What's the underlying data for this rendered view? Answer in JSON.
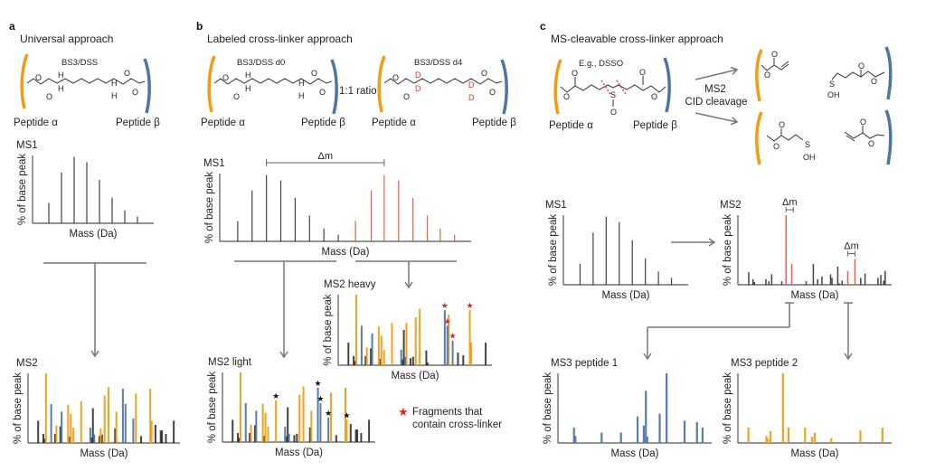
{
  "colors": {
    "orange": "#f39c12",
    "blue": "#4f75a8",
    "black": "#222222",
    "red": "#e8554a",
    "gray": "#777777",
    "star_red": "#e8231b"
  },
  "panels": {
    "a": {
      "letter": "a",
      "title": "Universal approach",
      "linker": "BS3/DSS",
      "peptide_alpha": "Peptide α",
      "peptide_beta": "Peptide β"
    },
    "b": {
      "letter": "b",
      "title": "Labeled cross-linker approach",
      "linker_d0": "BS3/DSS d0",
      "linker_d4": "BS3/DSS d4",
      "ratio": "1:1 ratio",
      "peptide_alpha": "Peptide α",
      "peptide_beta": "Peptide β",
      "legend": [
        "Fragments that",
        "contain cross-linker"
      ]
    },
    "c": {
      "letter": "c",
      "title": "MS-cleavable cross-linker approach",
      "linker": "E.g., DSSO",
      "peptide_alpha": "Peptide α",
      "peptide_beta": "Peptide β",
      "cleavage": [
        "MS2",
        "CID cleavage"
      ]
    }
  },
  "atoms": {
    "O": "O",
    "H": "H",
    "D": "D",
    "S": "S",
    "OH": "OH"
  },
  "chart_data": [
    {
      "id": "a-ms1",
      "type": "bar",
      "title": "MS1",
      "xlabel": "Mass (Da)",
      "ylabel": "% of base peak",
      "ylim": [
        0,
        100
      ],
      "series": [
        {
          "name": "light",
          "color": "black",
          "x": [
            1,
            2,
            3,
            4,
            5,
            6,
            7,
            8
          ],
          "values": [
            30,
            75,
            98,
            90,
            64,
            38,
            19,
            10
          ]
        }
      ]
    },
    {
      "id": "a-ms2",
      "type": "bar",
      "title": "MS2",
      "xlabel": "Mass (Da)",
      "ylabel": "% of base peak",
      "ylim": [
        0,
        100
      ],
      "series": [
        {
          "name": "other",
          "color": "black",
          "x": [
            5,
            9,
            10,
            18,
            22,
            29,
            46,
            47,
            52,
            54,
            64,
            65,
            84,
            95,
            99,
            100,
            103,
            109
          ],
          "values": [
            32,
            13,
            6,
            13,
            24,
            9,
            8,
            50,
            10,
            12,
            21,
            4,
            10,
            26,
            18,
            18,
            13,
            32
          ]
        },
        {
          "name": "peptide-alpha",
          "color": "orange",
          "x": [
            11,
            19,
            28,
            30,
            32,
            38,
            53,
            56,
            59,
            65,
            80,
            91,
            92
          ],
          "values": [
            100,
            25,
            55,
            42,
            22,
            60,
            21,
            68,
            80,
            45,
            71,
            78,
            32
          ]
        },
        {
          "name": "peptide-beta",
          "color": "blue",
          "x": [
            15,
            23,
            45,
            48,
            70,
            72,
            78
          ],
          "values": [
            56,
            45,
            22,
            12,
            78,
            56,
            35
          ]
        }
      ]
    },
    {
      "id": "b-ms1",
      "type": "bar",
      "title": "MS1",
      "xlabel": "Mass (Da)",
      "ylabel": "% of base peak",
      "ylim": [
        0,
        100
      ],
      "annotation": "Δm",
      "series": [
        {
          "name": "d0",
          "color": "black",
          "x": [
            1,
            2,
            3,
            4,
            5,
            6,
            7,
            8
          ],
          "values": [
            30,
            75,
            98,
            90,
            64,
            38,
            19,
            10
          ]
        },
        {
          "name": "d4",
          "color": "red",
          "x": [
            9.2,
            10.3,
            11.2,
            12.2,
            13.2,
            14.2,
            15.1,
            16.1
          ],
          "values": [
            30,
            75,
            98,
            90,
            64,
            38,
            19,
            10
          ]
        }
      ]
    },
    {
      "id": "b-ms2-light",
      "type": "bar",
      "title": "MS2  light",
      "xlabel": "Mass (Da)",
      "ylabel": "% of base peak",
      "ylim": [
        0,
        100
      ],
      "starred_x": [
        38,
        70,
        72,
        78,
        92
      ],
      "series": [
        {
          "name": "other",
          "color": "black",
          "x": [
            5,
            9,
            10,
            18,
            22,
            29,
            46,
            47,
            52,
            54,
            64,
            65,
            84,
            95,
            99,
            100,
            103,
            109
          ],
          "values": [
            32,
            13,
            6,
            13,
            24,
            9,
            8,
            50,
            10,
            12,
            21,
            4,
            10,
            26,
            18,
            18,
            13,
            32
          ]
        },
        {
          "name": "peptide-alpha",
          "color": "orange",
          "x": [
            11,
            19,
            28,
            30,
            32,
            38,
            56,
            59,
            65,
            80,
            91,
            92
          ],
          "values": [
            100,
            25,
            55,
            42,
            22,
            60,
            68,
            80,
            45,
            71,
            78,
            32
          ]
        },
        {
          "name": "peptide-beta",
          "color": "blue",
          "x": [
            15,
            23,
            45,
            48,
            70,
            72,
            78
          ],
          "values": [
            56,
            45,
            22,
            12,
            78,
            56,
            35
          ]
        }
      ]
    },
    {
      "id": "b-ms2-heavy",
      "type": "bar",
      "title": "MS2 heavy",
      "xlabel": "Mass (Da)",
      "ylabel": "% of base peak",
      "ylim": [
        0,
        100
      ],
      "starred_x": [
        78,
        80,
        84,
        97
      ],
      "series": [
        {
          "name": "other",
          "color": "black",
          "x": [
            5,
            9,
            10,
            18,
            22,
            29,
            46,
            47,
            52,
            54,
            64,
            65,
            88,
            92,
            109
          ],
          "values": [
            32,
            13,
            6,
            13,
            24,
            9,
            8,
            50,
            10,
            12,
            21,
            4,
            18,
            14,
            32
          ]
        },
        {
          "name": "peptide-alpha",
          "color": "orange",
          "x": [
            11,
            19,
            28,
            30,
            32,
            38,
            49,
            56,
            59,
            81,
            97,
            98
          ],
          "values": [
            100,
            25,
            55,
            42,
            22,
            60,
            60,
            68,
            80,
            72,
            78,
            32
          ]
        },
        {
          "name": "peptide-beta",
          "color": "blue",
          "x": [
            15,
            23,
            45,
            48,
            78,
            80,
            84
          ],
          "values": [
            56,
            45,
            22,
            12,
            78,
            56,
            35
          ]
        }
      ]
    },
    {
      "id": "c-ms1",
      "type": "bar",
      "title": "MS1",
      "xlabel": "Mass (Da)",
      "ylabel": "% of base peak",
      "ylim": [
        0,
        100
      ],
      "series": [
        {
          "name": "precursor",
          "color": "black",
          "x": [
            1,
            2,
            3,
            4,
            5,
            6,
            7,
            8
          ],
          "values": [
            30,
            75,
            98,
            90,
            64,
            38,
            19,
            10
          ]
        }
      ]
    },
    {
      "id": "c-ms2",
      "type": "bar",
      "title": "MS2",
      "xlabel": "Mass (Da)",
      "ylabel": "% of base peak",
      "ylim": [
        0,
        100
      ],
      "annotations": [
        "Δm",
        "Δm"
      ],
      "series": [
        {
          "name": "fragments",
          "color": "black",
          "x": [
            5,
            8,
            9,
            17,
            19,
            21,
            28,
            45,
            50,
            53,
            56,
            62,
            63,
            67,
            68,
            70,
            83,
            86,
            95,
            97,
            99,
            100
          ],
          "values": [
            18,
            8,
            4,
            8,
            5,
            15,
            5,
            5,
            30,
            8,
            12,
            15,
            10,
            26,
            2,
            6,
            10,
            16,
            10,
            14,
            6,
            20
          ]
        },
        {
          "name": "signature",
          "color": "red",
          "x": [
            31,
            35,
            74,
            79
          ],
          "values": [
            100,
            30,
            20,
            37
          ]
        }
      ]
    },
    {
      "id": "c-ms3-peptide-1",
      "type": "bar",
      "title": "MS3 peptide 1",
      "xlabel": "Mass (Da)",
      "ylabel": "% of base peak",
      "ylim": [
        0,
        100
      ],
      "series": [
        {
          "name": "peptide-beta",
          "color": "blue",
          "x": [
            9,
            10,
            29,
            43,
            55,
            59.5,
            61,
            62,
            71,
            76,
            89,
            98,
            102
          ],
          "values": [
            22,
            10,
            15,
            15,
            38,
            25,
            75,
            9,
            42,
            100,
            32,
            30,
            22
          ]
        }
      ]
    },
    {
      "id": "c-ms3-peptide-2",
      "type": "bar",
      "title": "MS3 peptide 2",
      "xlabel": "Mass (Da)",
      "ylabel": "% of base peak",
      "ylim": [
        0,
        100
      ],
      "series": [
        {
          "name": "peptide-alpha",
          "color": "orange",
          "x": [
            5,
            18,
            19,
            21,
            30,
            34,
            46,
            51,
            53,
            65,
            86,
            102
          ],
          "values": [
            22,
            10,
            6,
            17,
            100,
            22,
            22,
            9,
            15,
            7,
            18,
            22
          ]
        }
      ]
    }
  ]
}
